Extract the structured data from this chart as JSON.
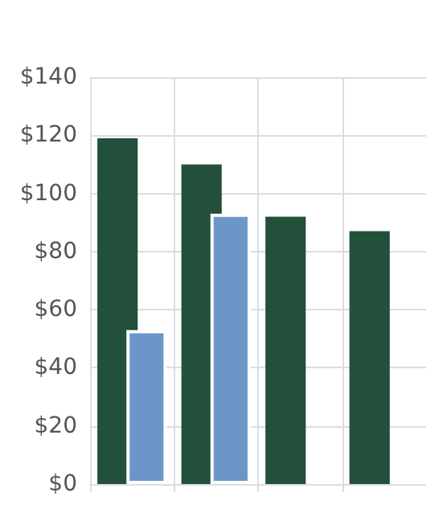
{
  "chart_data": {
    "type": "bar",
    "categories": [
      null,
      null,
      null,
      null
    ],
    "series": [
      {
        "color": "#22503a",
        "values": [
          119,
          110,
          92,
          87
        ]
      },
      {
        "color": "#6a96c8",
        "values": [
          53,
          93,
          null,
          null
        ]
      }
    ],
    "ylim": [
      0,
      140
    ],
    "yticks": [
      {
        "value": 0,
        "label": "$0"
      },
      {
        "value": 20,
        "label": "$20"
      },
      {
        "value": 40,
        "label": "$40"
      },
      {
        "value": 60,
        "label": "$60"
      },
      {
        "value": 80,
        "label": "$80"
      },
      {
        "value": 100,
        "label": "$100"
      },
      {
        "value": 120,
        "label": "$120"
      },
      {
        "value": 140,
        "label": "$140"
      }
    ],
    "grid": true
  }
}
